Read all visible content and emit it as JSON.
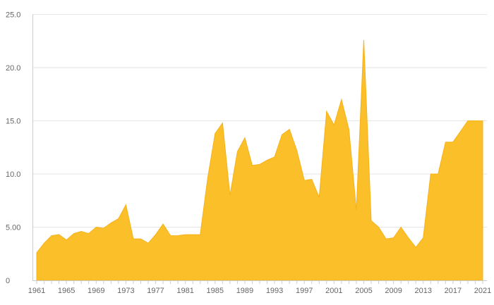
{
  "colors": {
    "area_fill": "#fbbf2a",
    "area_stroke": "#f5b21a",
    "grid": "#e6e6e6",
    "axis": "#cccccc",
    "label": "#666666"
  },
  "chart_data": {
    "type": "area",
    "title": "",
    "xlabel": "",
    "ylabel": "",
    "xlim": [
      1961,
      2021
    ],
    "ylim": [
      0,
      25
    ],
    "grid": true,
    "legend": "none",
    "y_ticks": [
      {
        "value": 0,
        "label": "0"
      },
      {
        "value": 5,
        "label": "5.00"
      },
      {
        "value": 10,
        "label": "10.0"
      },
      {
        "value": 15,
        "label": "15.0"
      },
      {
        "value": 20,
        "label": "20.0"
      },
      {
        "value": 25,
        "label": "25.0"
      }
    ],
    "x_tick_labels": [
      "1961",
      "1965",
      "1969",
      "1973",
      "1977",
      "1981",
      "1985",
      "1989",
      "1993",
      "1997",
      "2001",
      "2005",
      "2009",
      "2013",
      "2017",
      "2021"
    ],
    "x": [
      1961,
      1962,
      1963,
      1964,
      1965,
      1966,
      1967,
      1968,
      1969,
      1970,
      1971,
      1972,
      1973,
      1974,
      1975,
      1976,
      1977,
      1978,
      1979,
      1980,
      1981,
      1982,
      1983,
      1984,
      1985,
      1986,
      1987,
      1988,
      1989,
      1990,
      1991,
      1992,
      1993,
      1994,
      1995,
      1996,
      1997,
      1998,
      1999,
      2000,
      2001,
      2002,
      2003,
      2004,
      2005,
      2006,
      2007,
      2008,
      2009,
      2010,
      2011,
      2012,
      2013,
      2014,
      2015,
      2016,
      2017,
      2018,
      2019,
      2020,
      2021
    ],
    "series": [
      {
        "values": [
          2.6,
          3.5,
          4.2,
          4.3,
          3.8,
          4.4,
          4.6,
          4.4,
          5.0,
          4.9,
          5.4,
          5.8,
          7.1,
          3.9,
          3.9,
          3.5,
          4.3,
          5.3,
          4.2,
          4.2,
          4.3,
          4.3,
          4.3,
          9.6,
          13.8,
          14.8,
          8.0,
          12.1,
          13.4,
          10.8,
          10.9,
          11.3,
          11.6,
          13.7,
          14.2,
          12.2,
          9.4,
          9.5,
          7.8,
          15.9,
          14.6,
          17.0,
          14.2,
          6.6,
          22.6,
          5.6,
          5.0,
          3.9,
          4.0,
          5.0,
          4.0,
          3.1,
          4.0,
          10.0,
          10.0,
          13.0,
          13.0,
          14.0,
          15.0,
          15.0,
          15.0
        ]
      }
    ]
  }
}
